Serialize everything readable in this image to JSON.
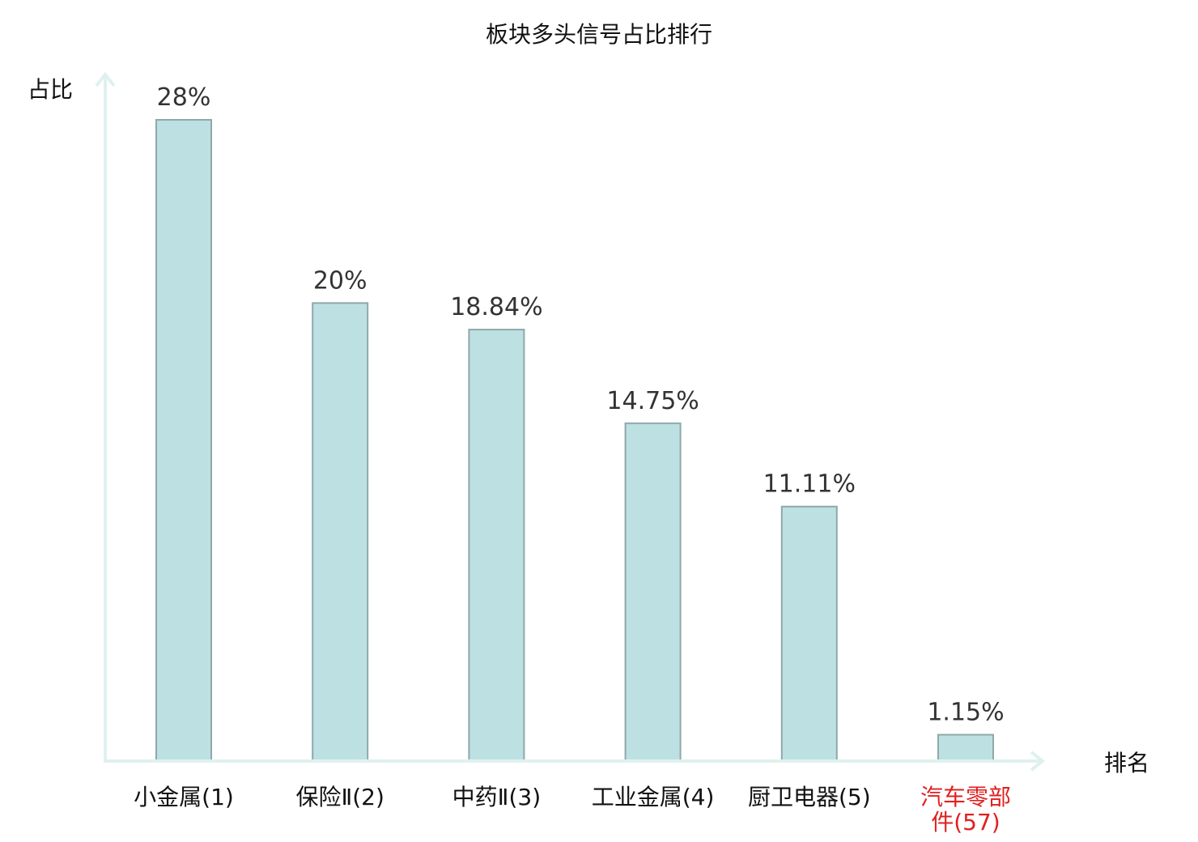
{
  "chart_data": {
    "type": "bar",
    "title": "板块多头信号占比排行",
    "ylabel": "占比",
    "xlabel": "排名",
    "ylim": [
      0,
      28
    ],
    "grid": false,
    "categories": [
      {
        "label": "小金属(1)",
        "line1": "小金属(1)",
        "line2": "",
        "highlight": false
      },
      {
        "label": "保险Ⅱ(2)",
        "line1": "保险Ⅱ(2)",
        "line2": "",
        "highlight": false
      },
      {
        "label": "中药Ⅱ(3)",
        "line1": "中药Ⅱ(3)",
        "line2": "",
        "highlight": false
      },
      {
        "label": "工业金属(4)",
        "line1": "工业金属(4)",
        "line2": "",
        "highlight": false
      },
      {
        "label": "厨卫电器(5)",
        "line1": "厨卫电器(5)",
        "line2": "",
        "highlight": false
      },
      {
        "label": "汽车零部件(57)",
        "line1": "汽车零部",
        "line2": "件(57)",
        "highlight": true
      }
    ],
    "values": [
      28,
      20,
      18.84,
      14.75,
      11.11,
      1.15
    ],
    "value_labels": [
      "28%",
      "20%",
      "18.84%",
      "14.75%",
      "11.11%",
      "1.15%"
    ],
    "colors": {
      "bar_fill": "#bde0e3",
      "bar_stroke": "#8fa8aa",
      "axis": "#dff1ef",
      "label": "#111111",
      "value_label": "#333333",
      "highlight": "#e02020"
    }
  }
}
